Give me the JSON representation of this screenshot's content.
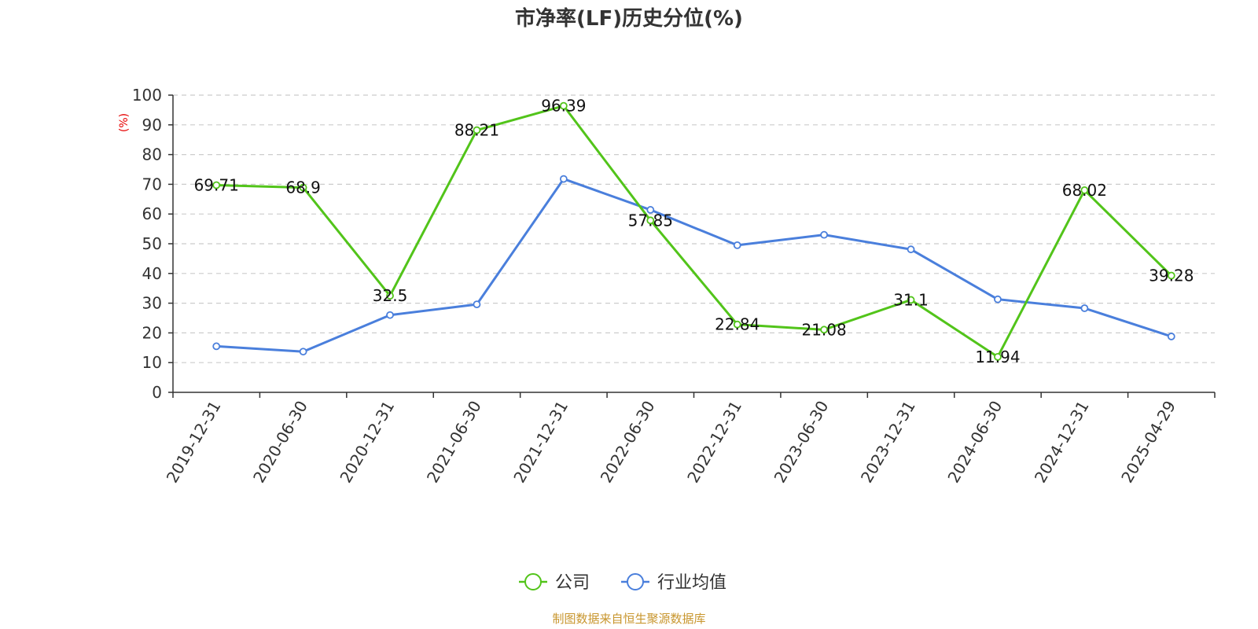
{
  "colors": {
    "company": "#52c41a",
    "industry": "#4a7fdc",
    "unit": "#e60000",
    "source": "#c8962e"
  },
  "chart_data": {
    "type": "line",
    "title": "市净率(LF)历史分位(%)",
    "ylabel": "(%)",
    "ylim": [
      0,
      100
    ],
    "yticks": [
      0,
      10,
      20,
      30,
      40,
      50,
      60,
      70,
      80,
      90,
      100
    ],
    "grid": true,
    "legend_position": "bottom-center",
    "categories": [
      "2019-12-31",
      "2020-06-30",
      "2020-12-31",
      "2021-06-30",
      "2021-12-31",
      "2022-06-30",
      "2022-12-31",
      "2023-06-30",
      "2023-12-31",
      "2024-06-30",
      "2024-12-31",
      "2025-04-29"
    ],
    "series": [
      {
        "name": "公司",
        "values": [
          69.71,
          68.9,
          32.5,
          88.21,
          96.39,
          57.85,
          22.84,
          21.08,
          31.1,
          11.94,
          68.02,
          39.28
        ],
        "labels": [
          "69.71",
          "68.9",
          "32.5",
          "88.21",
          "96.39",
          "57.85",
          "22.84",
          "21.08",
          "31.1",
          "11.94",
          "68.02",
          "39.28"
        ]
      },
      {
        "name": "行业均值",
        "values": [
          15.5,
          13.7,
          26.0,
          29.6,
          71.8,
          61.4,
          49.5,
          53.0,
          48.1,
          31.3,
          28.3,
          18.8
        ]
      }
    ]
  },
  "source": "制图数据来自恒生聚源数据库"
}
